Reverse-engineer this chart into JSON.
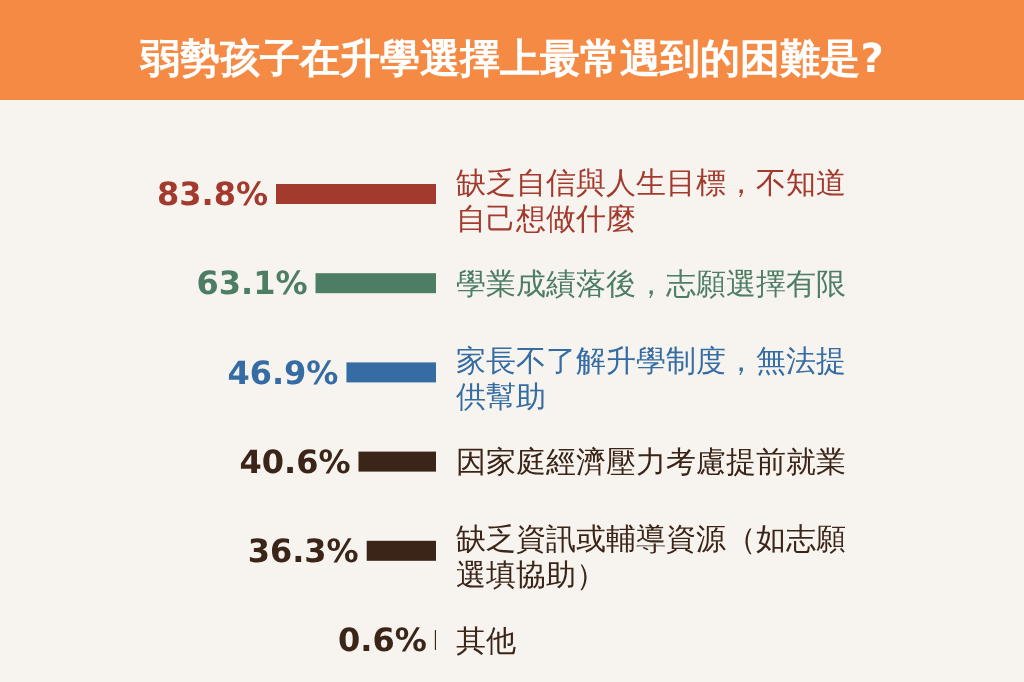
{
  "chart_data": {
    "type": "bar",
    "orientation": "horizontal",
    "title": "弱勢孩子在升學選擇上最常遇到的困難是?",
    "categories": [
      "缺乏自信與人生目標，不知道自己想做什麼",
      "學業成績落後，志願選擇有限",
      "家長不了解升學制度，無法提供幫助",
      "因家庭經濟壓力考慮提前就業",
      "缺乏資訊或輔導資源（如志願選填協助）",
      "其他"
    ],
    "values": [
      83.8,
      63.1,
      46.9,
      40.6,
      36.3,
      0.6
    ],
    "colors": [
      "#a33a2e",
      "#4d7d63",
      "#356ca3",
      "#3b2418",
      "#3b2418",
      "#3b2418"
    ],
    "value_labels": [
      "83.8%",
      "63.1%",
      "46.9%",
      "40.6%",
      "36.3%",
      "0.6%"
    ],
    "relative": false
  }
}
